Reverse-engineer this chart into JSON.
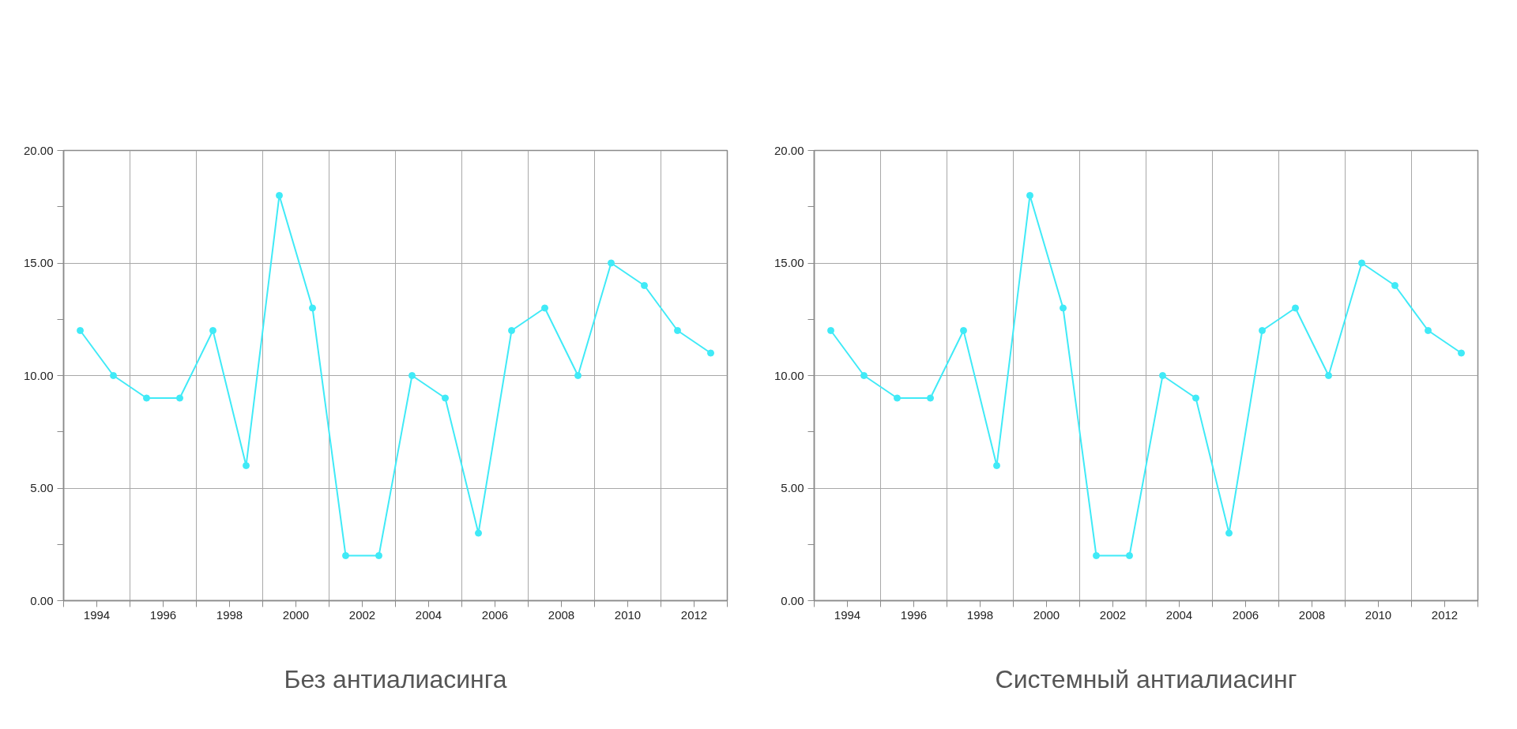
{
  "chart_data": [
    {
      "type": "line",
      "xlabel": "Без антиалиасинга",
      "x": [
        1993.5,
        1994.5,
        1995.5,
        1996.5,
        1997.5,
        1998.5,
        1999.5,
        2000.5,
        2001.5,
        2002.5,
        2003.5,
        2004.5,
        2005.5,
        2006.5,
        2007.5,
        2008.5,
        2009.5,
        2010.5,
        2011.5,
        2012.5
      ],
      "series": [
        {
          "color": "#40eaf7",
          "values": [
            12,
            10,
            9,
            9,
            12,
            6,
            18,
            13,
            2,
            2,
            10,
            9,
            3,
            12,
            13,
            10,
            15,
            14,
            12,
            11
          ]
        }
      ],
      "xlim": [
        1993,
        2013
      ],
      "xticks": [
        {
          "value": 1993,
          "label": null
        },
        1994,
        {
          "value": 1995,
          "label": null
        },
        1996,
        {
          "value": 1997,
          "label": null
        },
        1998,
        {
          "value": 1999,
          "label": null
        },
        2000,
        {
          "value": 2001,
          "label": null
        },
        2002,
        {
          "value": 2003,
          "label": null
        },
        2004,
        {
          "value": 2005,
          "label": null
        },
        2006,
        {
          "value": 2007,
          "label": null
        },
        2008,
        {
          "value": 2009,
          "label": null
        },
        2010,
        {
          "value": 2011,
          "label": null
        },
        2012,
        {
          "value": 2013,
          "label": null
        }
      ],
      "ylim": [
        0,
        20
      ],
      "yticks": [
        {
          "value": 0,
          "label": "0.00"
        },
        {
          "value": 2.5,
          "label": null
        },
        {
          "value": 5,
          "label": "5.00"
        },
        {
          "value": 7.5,
          "label": null
        },
        {
          "value": 10,
          "label": "10.00"
        },
        {
          "value": 12.5,
          "label": null
        },
        {
          "value": 15,
          "label": "15.00"
        },
        {
          "value": 17.5,
          "label": null
        },
        {
          "value": 20,
          "label": "20.00"
        }
      ],
      "grid": true,
      "marker": "circle",
      "line_style": "solid"
    },
    {
      "type": "line",
      "xlabel": "Системный антиалиасинг",
      "x": [
        1993.5,
        1994.5,
        1995.5,
        1996.5,
        1997.5,
        1998.5,
        1999.5,
        2000.5,
        2001.5,
        2002.5,
        2003.5,
        2004.5,
        2005.5,
        2006.5,
        2007.5,
        2008.5,
        2009.5,
        2010.5,
        2011.5,
        2012.5
      ],
      "series": [
        {
          "color": "#40eaf7",
          "values": [
            12,
            10,
            9,
            9,
            12,
            6,
            18,
            13,
            2,
            2,
            10,
            9,
            3,
            12,
            13,
            10,
            15,
            14,
            12,
            11
          ]
        }
      ],
      "xlim": [
        1993,
        2013
      ],
      "xticks": [
        {
          "value": 1993,
          "label": null
        },
        1994,
        {
          "value": 1995,
          "label": null
        },
        1996,
        {
          "value": 1997,
          "label": null
        },
        1998,
        {
          "value": 1999,
          "label": null
        },
        2000,
        {
          "value": 2001,
          "label": null
        },
        2002,
        {
          "value": 2003,
          "label": null
        },
        2004,
        {
          "value": 2005,
          "label": null
        },
        2006,
        {
          "value": 2007,
          "label": null
        },
        2008,
        {
          "value": 2009,
          "label": null
        },
        2010,
        {
          "value": 2011,
          "label": null
        },
        2012,
        {
          "value": 2013,
          "label": null
        }
      ],
      "ylim": [
        0,
        20
      ],
      "yticks": [
        {
          "value": 0,
          "label": "0.00"
        },
        {
          "value": 2.5,
          "label": null
        },
        {
          "value": 5,
          "label": "5.00"
        },
        {
          "value": 7.5,
          "label": null
        },
        {
          "value": 10,
          "label": "10.00"
        },
        {
          "value": 12.5,
          "label": null
        },
        {
          "value": 15,
          "label": "15.00"
        },
        {
          "value": 17.5,
          "label": null
        },
        {
          "value": 20,
          "label": "20.00"
        }
      ],
      "grid": true,
      "marker": "circle",
      "line_style": "solid"
    }
  ]
}
